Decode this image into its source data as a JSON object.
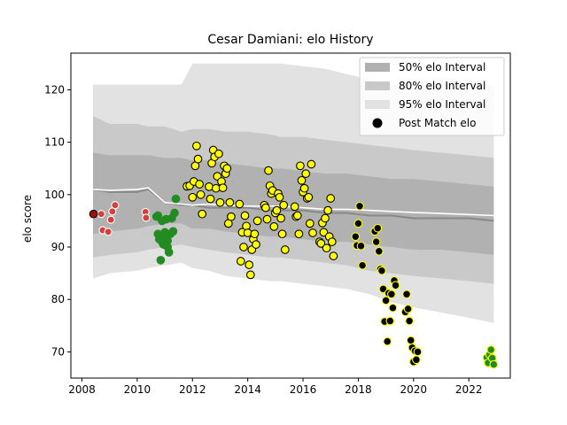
{
  "chart_data": {
    "type": "scatter",
    "title": "Cesar Damiani: elo History",
    "xlabel": "",
    "ylabel": "elo score",
    "xlim": [
      2007.6,
      2023.5
    ],
    "ylim": [
      65,
      127
    ],
    "x_ticks": [
      2008,
      2010,
      2012,
      2014,
      2016,
      2018,
      2020,
      2022
    ],
    "y_ticks": [
      70,
      80,
      90,
      100,
      110,
      120
    ],
    "legend_position": "top-right",
    "legend": [
      {
        "label": "50% elo Interval",
        "swatch": "band",
        "color": "#b0b0b0"
      },
      {
        "label": "80% elo Interval",
        "swatch": "band",
        "color": "#c8c8c8"
      },
      {
        "label": "95% elo Interval",
        "swatch": "band",
        "color": "#e2e2e2"
      },
      {
        "label": "Post Match elo",
        "swatch": "dot",
        "color": "#000000"
      }
    ],
    "colors": {
      "band_95": "#e2e2e2",
      "band_80": "#c9c9c9",
      "band_50": "#b1b1b1",
      "mean_line": "#888888",
      "median_line": "#ffffff",
      "dot_red": "#d43f3a",
      "dot_green": "#228b22",
      "dot_yellow": "#ffff00",
      "dot_black": "#000000"
    },
    "bands": {
      "x": [
        2008.4,
        2009.0,
        2010.0,
        2010.4,
        2011.0,
        2011.6,
        2012.0,
        2012.6,
        2013.2,
        2014.0,
        2014.8,
        2015.2,
        2016.0,
        2016.8,
        2017.6,
        2018.4,
        2019.2,
        2020.0,
        2021.0,
        2022.0,
        2022.9
      ],
      "p95_low": [
        84,
        85,
        85.5,
        86,
        86.5,
        87,
        86,
        85.5,
        84.5,
        84,
        83.5,
        83.5,
        83,
        82.5,
        82,
        81,
        79.5,
        78.5,
        77.5,
        76.5,
        75.5
      ],
      "p95_high": [
        121,
        121,
        121,
        121,
        121,
        121,
        125,
        125,
        125,
        125,
        125,
        125,
        124.5,
        124,
        123,
        122,
        121,
        121,
        121,
        121,
        121
      ],
      "p80_low": [
        88,
        88.5,
        89,
        89.5,
        90,
        90.5,
        90,
        89.5,
        89,
        88.5,
        88,
        88,
        87.5,
        87,
        86.5,
        85.5,
        85,
        84.5,
        84,
        83.5,
        83
      ],
      "p80_high": [
        115,
        113.5,
        113.5,
        113,
        113,
        112,
        112.5,
        112.5,
        112,
        112,
        111.5,
        111,
        111,
        110.5,
        110,
        109.5,
        109,
        108.5,
        108,
        107.5,
        107
      ],
      "p50_low": [
        92.5,
        93,
        93.5,
        94,
        94.5,
        94.5,
        93.5,
        93.5,
        93,
        92.5,
        92,
        92,
        91.5,
        91,
        91,
        90.5,
        90,
        89.5,
        89.5,
        89,
        88.5
      ],
      "p50_high": [
        108,
        107.5,
        107.5,
        107.5,
        107,
        107,
        106.5,
        106.5,
        106,
        105.5,
        105,
        105,
        104.5,
        104,
        104,
        103.5,
        103,
        103,
        102.5,
        102,
        101.5
      ],
      "mean": [
        101,
        100.5,
        100.5,
        101,
        98.5,
        98,
        98,
        97.5,
        97.5,
        97.5,
        97,
        97,
        97,
        96.5,
        96.5,
        96,
        96,
        95.5,
        95.5,
        95.5,
        95
      ],
      "median": [
        101,
        100.8,
        101,
        101.3,
        98.5,
        98.2,
        98,
        98.2,
        98,
        97.8,
        97.8,
        97.8,
        97.5,
        97.2,
        97.2,
        97,
        96.8,
        96.6,
        96.4,
        96.2,
        96
      ]
    },
    "series": [
      {
        "name": "",
        "color": "red",
        "x": [
          2008.42,
          2008.7,
          2008.75,
          2008.95,
          2009.05,
          2009.1,
          2009.2,
          2010.3,
          2010.32
        ],
        "y": [
          96.3,
          96.3,
          93.2,
          92.9,
          95.2,
          96.8,
          98.0,
          96.7,
          95.6
        ]
      },
      {
        "name": "",
        "color": "green",
        "x": [
          2010.7,
          2010.75,
          2010.8,
          2010.85,
          2010.9,
          2010.95,
          2011.0,
          2011.05,
          2011.1,
          2011.15,
          2011.2,
          2011.25,
          2011.3,
          2011.35,
          2011.4,
          2010.75,
          2010.9,
          2011.0,
          2011.1
        ],
        "y": [
          95.8,
          92.5,
          91.5,
          87.5,
          95.0,
          90.5,
          92.0,
          95.3,
          90.0,
          89.0,
          92.5,
          95.5,
          93.0,
          96.5,
          99.2,
          96.0,
          91.0,
          92.8,
          91.2
        ]
      },
      {
        "name": "",
        "color": "yellow",
        "x": [
          2011.8,
          2011.9,
          2012.0,
          2012.05,
          2012.1,
          2012.15,
          2012.2,
          2012.25,
          2012.3,
          2012.35,
          2012.6,
          2012.65,
          2012.7,
          2012.75,
          2012.8,
          2012.85,
          2012.9,
          2012.95,
          2013.0,
          2013.05,
          2013.1,
          2013.15,
          2013.2,
          2013.25,
          2013.3,
          2013.35,
          2013.4,
          2013.7,
          2013.75,
          2013.8,
          2013.85,
          2013.9,
          2013.95,
          2014.0,
          2014.05,
          2014.1,
          2014.15,
          2014.2,
          2014.25,
          2014.3,
          2014.35,
          2014.6,
          2014.65,
          2014.7,
          2014.75,
          2014.8,
          2014.85,
          2014.9,
          2014.95,
          2015.0,
          2015.05,
          2015.1,
          2015.15,
          2015.2,
          2015.25,
          2015.3,
          2015.35,
          2015.7,
          2015.75,
          2015.8,
          2015.85,
          2015.9,
          2015.95,
          2016.0,
          2016.05,
          2016.1,
          2016.15,
          2016.2,
          2016.25,
          2016.3,
          2016.35,
          2016.6,
          2016.65,
          2016.7,
          2016.75,
          2016.8,
          2016.85,
          2016.9,
          2016.95,
          2017.0,
          2017.05,
          2017.1
        ],
        "y": [
          101.6,
          101.7,
          99.5,
          102.5,
          105.5,
          109.3,
          106.8,
          102.0,
          100.0,
          96.3,
          101.5,
          99.2,
          106.0,
          108.5,
          107.2,
          101.2,
          103.5,
          107.8,
          98.5,
          102.5,
          101.3,
          105.5,
          104.0,
          105.0,
          94.5,
          98.5,
          95.8,
          98.2,
          87.3,
          92.8,
          90.0,
          96.0,
          94.0,
          92.7,
          86.6,
          84.7,
          89.5,
          91.5,
          92.5,
          90.5,
          95.0,
          98.0,
          97.5,
          95.3,
          104.6,
          101.7,
          100.2,
          100.8,
          93.9,
          96.5,
          97.0,
          100.2,
          99.5,
          95.5,
          92.5,
          98.0,
          89.5,
          97.7,
          95.8,
          96.0,
          92.5,
          105.5,
          102.7,
          100.5,
          101.2,
          104.0,
          99.3,
          99.5,
          94.5,
          105.8,
          92.7,
          91.0,
          90.7,
          94.6,
          92.8,
          95.5,
          89.8,
          97.0,
          92.0,
          99.3,
          91.0,
          88.3
        ]
      },
      {
        "name": "",
        "color": "black",
        "x": [
          2017.9,
          2017.95,
          2018.0,
          2018.05,
          2018.1,
          2018.15,
          2018.6,
          2018.65,
          2018.7,
          2018.75,
          2018.8,
          2018.85,
          2018.9,
          2018.95,
          2019.0,
          2019.05,
          2019.1,
          2019.15,
          2019.2,
          2019.25,
          2019.3,
          2019.35,
          2019.7,
          2019.75,
          2019.8,
          2019.85,
          2019.9,
          2019.95,
          2020.0,
          2020.05,
          2020.1,
          2020.15
        ],
        "y": [
          92.0,
          90.3,
          94.5,
          97.8,
          90.2,
          86.5,
          93.0,
          91.0,
          93.6,
          89.2,
          85.8,
          85.5,
          82.0,
          75.8,
          79.8,
          72.0,
          81.2,
          75.9,
          81.0,
          78.4,
          83.6,
          82.7,
          77.6,
          81.0,
          78.2,
          75.9,
          72.2,
          70.8,
          68.1,
          70.2,
          68.5,
          70.0
        ]
      },
      {
        "name": "",
        "color": "green_on_yellow",
        "x": [
          2022.65,
          2022.7,
          2022.75,
          2022.8,
          2022.85,
          2022.9
        ],
        "y": [
          68.9,
          67.9,
          69.5,
          70.4,
          68.8,
          67.6
        ]
      }
    ]
  }
}
